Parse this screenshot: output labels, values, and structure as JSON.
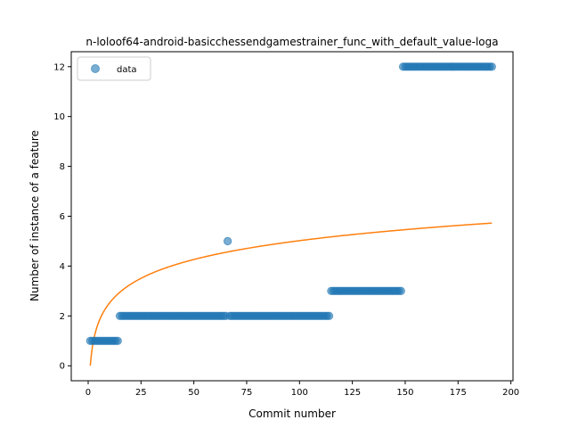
{
  "chart_data": {
    "type": "scatter",
    "title": "n-loloof64-android-basicchessendgamestrainer_func_with_default_value-loga",
    "xlabel": "Commit number",
    "ylabel": "Number of instance of a feature",
    "xlim": [
      -8,
      201
    ],
    "ylim": [
      -0.6,
      12.6
    ],
    "xticks": [
      0,
      25,
      50,
      75,
      100,
      125,
      150,
      175,
      200
    ],
    "yticks": [
      0,
      2,
      4,
      6,
      8,
      10,
      12
    ],
    "legend": {
      "placement": "top-left",
      "entries": [
        "data"
      ]
    },
    "grid": false,
    "colors": {
      "data": "#1f77b4",
      "fit": "#ff7f0e"
    },
    "series": [
      {
        "name": "data",
        "kind": "points",
        "segments": [
          {
            "x_from": 1,
            "x_to": 14,
            "y": 1
          },
          {
            "x_from": 15,
            "x_to": 65,
            "y": 2
          },
          {
            "x_from": 66,
            "x_to": 66,
            "y": 5
          },
          {
            "x_from": 67,
            "x_to": 114,
            "y": 2
          },
          {
            "x_from": 115,
            "x_to": 148,
            "y": 3
          },
          {
            "x_from": 149,
            "x_to": 191,
            "y": 12
          }
        ]
      },
      {
        "kind": "fit-line",
        "model": "a*ln(x)+b",
        "a": 1.09,
        "b": 0,
        "x_from": 1,
        "x_to": 191
      }
    ]
  }
}
